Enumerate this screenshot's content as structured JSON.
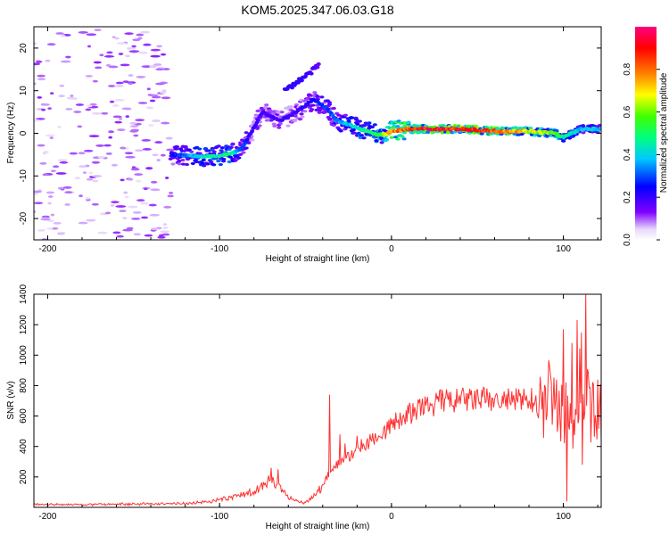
{
  "title": "KOM5.2025.347.06.03.G18",
  "chart_data": [
    {
      "type": "heatmap",
      "xlabel": "Height of straight line (km)",
      "ylabel": "Frequency (Hz)",
      "xlim": [
        -208,
        122
      ],
      "ylim": [
        -25,
        25
      ],
      "xticks": [
        -200,
        -100,
        0,
        100
      ],
      "yticks": [
        -20,
        -10,
        0,
        10,
        20
      ],
      "xtick_labels": [
        "-200",
        "-100",
        "0",
        "100"
      ],
      "ytick_labels": [
        "-20",
        "-10",
        "0",
        "10",
        "20"
      ],
      "colorbar": {
        "label": "Normalized spectral amplitude",
        "range": [
          0,
          1
        ],
        "ticks": [
          0.0,
          0.2,
          0.4,
          0.6,
          0.8
        ],
        "tick_labels": [
          "0.0",
          "0.2",
          "0.4",
          "0.6",
          "0.8"
        ],
        "colors": [
          "#ffffff",
          "#c8a0f0",
          "#8000ff",
          "#0000ff",
          "#00c8ff",
          "#00ff80",
          "#80ff00",
          "#ffff00",
          "#ff8000",
          "#ff0000",
          "#ff0080"
        ]
      },
      "ridge": {
        "x": [
          -128,
          -110,
          -95,
          -88,
          -82,
          -75,
          -65,
          -55,
          -45,
          -38,
          -32,
          -25,
          -18,
          -10,
          -5,
          0,
          10,
          20,
          40,
          60,
          80,
          95,
          100,
          105,
          110,
          118,
          122
        ],
        "y": [
          -5,
          -5.5,
          -5,
          -4,
          0,
          5,
          3,
          5,
          8,
          6,
          3,
          2,
          1,
          0,
          -0.5,
          0.5,
          1,
          1,
          1,
          0.5,
          0.5,
          0,
          -1,
          0,
          1,
          1,
          1
        ],
        "amplitude": [
          0.25,
          0.45,
          0.5,
          0.35,
          0.2,
          0.2,
          0.2,
          0.2,
          0.25,
          0.3,
          0.35,
          0.4,
          0.5,
          0.55,
          0.6,
          0.8,
          0.85,
          0.92,
          0.95,
          0.9,
          0.7,
          0.6,
          0.5,
          0.45,
          0.4,
          0.4,
          0.4
        ]
      },
      "upper_branch": {
        "x": [
          -62,
          -55,
          -48,
          -42
        ],
        "y": [
          10,
          12,
          14,
          16
        ],
        "amplitude": [
          0.2,
          0.2,
          0.2,
          0.15
        ]
      },
      "noise_region": [
        -208,
        -128
      ]
    },
    {
      "type": "line",
      "xlabel": "Height of straight line (km)",
      "ylabel": "SNR (v/v)",
      "xlim": [
        -208,
        122
      ],
      "ylim": [
        0,
        1400
      ],
      "xticks": [
        -200,
        -100,
        0,
        100
      ],
      "yticks": [
        200,
        400,
        600,
        800,
        1000,
        1200,
        1400
      ],
      "xtick_labels": [
        "-200",
        "-100",
        "0",
        "100"
      ],
      "ytick_labels": [
        "200",
        "400",
        "600",
        "800",
        "1000",
        "1200",
        "1400"
      ],
      "color": "#ff3030",
      "x": [
        -208,
        -180,
        -150,
        -120,
        -105,
        -95,
        -85,
        -80,
        -75,
        -70,
        -65,
        -60,
        -55,
        -50,
        -45,
        -40,
        -35,
        -30,
        -25,
        -20,
        -15,
        -10,
        -5,
        0,
        5,
        10,
        15,
        20,
        25,
        30,
        40,
        50,
        60,
        70,
        80,
        90,
        95,
        100,
        103,
        106,
        110,
        113,
        116,
        122
      ],
      "y": [
        20,
        18,
        22,
        25,
        40,
        60,
        90,
        110,
        140,
        180,
        150,
        60,
        40,
        30,
        70,
        150,
        250,
        300,
        330,
        380,
        420,
        460,
        490,
        540,
        580,
        610,
        640,
        660,
        680,
        700,
        700,
        710,
        700,
        700,
        710,
        700,
        800,
        550,
        700,
        550,
        900,
        700,
        650,
        660
      ],
      "spikes": [
        {
          "x": -70,
          "y": 260
        },
        {
          "x": -66,
          "y": 250
        },
        {
          "x": -36,
          "y": 740
        },
        {
          "x": -30,
          "y": 480
        },
        {
          "x": -27,
          "y": 420
        },
        {
          "x": -20,
          "y": 470
        },
        {
          "x": 88,
          "y": 760
        },
        {
          "x": 96,
          "y": 840
        },
        {
          "x": 100,
          "y": 1170
        },
        {
          "x": 102,
          "y": 40
        },
        {
          "x": 105,
          "y": 1080
        },
        {
          "x": 108,
          "y": 1230
        },
        {
          "x": 111,
          "y": 280
        },
        {
          "x": 113,
          "y": 1400
        }
      ]
    }
  ]
}
